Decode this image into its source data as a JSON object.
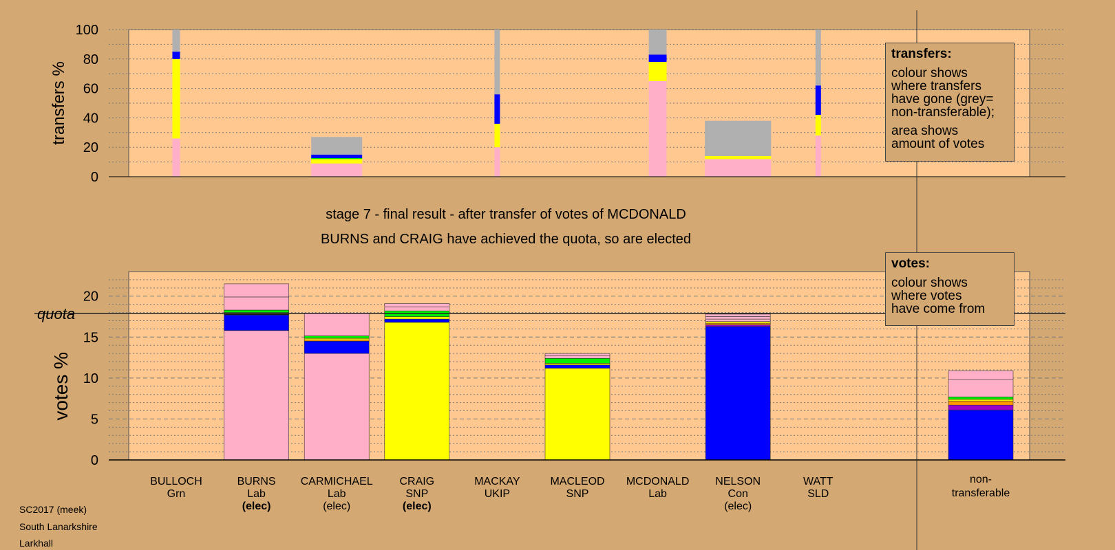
{
  "chart_data": [
    {
      "type": "bar",
      "stacked": true,
      "ylabel": "transfers %",
      "ylim": [
        0,
        100
      ],
      "yticks": [
        0,
        20,
        40,
        60,
        80,
        100
      ],
      "grid": "dotted",
      "legend": {
        "title": "transfers:",
        "paragraphs": [
          "colour shows\nwhere transfers\nhave gone (grey=\nnon-transferable);",
          "area shows\namount of votes"
        ],
        "placement": "top-right"
      },
      "colors": {
        "Lab": "#ffb0c8",
        "SNP": "#ffff00",
        "Con": "#0000ff",
        "Grn": "#00ee00",
        "UKIP": "#9900cc",
        "SLD": "#ff9900",
        "non-transferable": "#b0b0b0"
      },
      "bars": [
        {
          "target": "BULLOCH",
          "width_votes": 0.3,
          "segments": [
            {
              "party": "Lab",
              "value": 26
            },
            {
              "party": "SNP",
              "value": 54
            },
            {
              "party": "Con",
              "value": 5
            },
            {
              "party": "non-transferable",
              "value": 15
            }
          ]
        },
        {
          "target": "CARMICHAEL",
          "width_votes": 2.0,
          "segments": [
            {
              "party": "Lab",
              "value": 9
            },
            {
              "party": "SNP",
              "value": 3
            },
            {
              "party": "Grn",
              "value": 0.6
            },
            {
              "party": "Con",
              "value": 2.4
            },
            {
              "party": "non-transferable",
              "value": 12
            }
          ]
        },
        {
          "target": "MACKAY",
          "width_votes": 0.15,
          "segments": [
            {
              "party": "Lab",
              "value": 20
            },
            {
              "party": "SNP",
              "value": 16
            },
            {
              "party": "Con",
              "value": 20
            },
            {
              "party": "non-transferable",
              "value": 44
            }
          ]
        },
        {
          "target": "MCDONALD",
          "width_votes": 0.7,
          "segments": [
            {
              "party": "Lab",
              "value": 65
            },
            {
              "party": "SNP",
              "value": 13
            },
            {
              "party": "Con",
              "value": 5
            },
            {
              "party": "non-transferable",
              "value": 17
            }
          ]
        },
        {
          "target": "NELSON",
          "width_votes": 2.6,
          "segments": [
            {
              "party": "Lab",
              "value": 12
            },
            {
              "party": "SNP",
              "value": 2
            },
            {
              "party": "non-transferable",
              "value": 24
            }
          ]
        },
        {
          "target": "WATT",
          "width_votes": 0.15,
          "segments": [
            {
              "party": "Lab",
              "value": 28
            },
            {
              "party": "SNP",
              "value": 14
            },
            {
              "party": "Con",
              "value": 20
            },
            {
              "party": "non-transferable",
              "value": 38
            }
          ]
        }
      ]
    },
    {
      "type": "bar",
      "stacked": true,
      "title": "stage 7 - final result - after transfer of votes of MCDONALD",
      "subtitle": "BURNS and CRAIG have achieved the quota, so are elected",
      "ylabel": "votes %",
      "ylim": [
        0,
        23
      ],
      "yticks": [
        0,
        5,
        10,
        15,
        20
      ],
      "quota": 17.9,
      "quota_label": "quota",
      "grid": "dashed",
      "legend": {
        "title": "votes:",
        "paragraphs": [
          "colour shows\nwhere votes\nhave come from"
        ],
        "placement": "top-right"
      },
      "categories": [
        {
          "name": "BULLOCH",
          "party": "Grn",
          "status": "",
          "bold": false
        },
        {
          "name": "BURNS",
          "party": "Lab",
          "status": "(elec)",
          "bold": true
        },
        {
          "name": "CARMICHAEL",
          "party": "Lab",
          "status": "(elec)",
          "bold": false
        },
        {
          "name": "CRAIG",
          "party": "SNP",
          "status": "(elec)",
          "bold": true
        },
        {
          "name": "MACKAY",
          "party": "UKIP",
          "status": "",
          "bold": false
        },
        {
          "name": "MACLEOD",
          "party": "SNP",
          "status": "",
          "bold": false
        },
        {
          "name": "MCDONALD",
          "party": "Lab",
          "status": "",
          "bold": false
        },
        {
          "name": "NELSON",
          "party": "Con",
          "status": "(elec)",
          "bold": false
        },
        {
          "name": "WATT",
          "party": "SLD",
          "status": "",
          "bold": false
        }
      ],
      "nontransferable_label": [
        "non-",
        "transferable"
      ],
      "bars": [
        {
          "candidate": "BULLOCH",
          "segments": []
        },
        {
          "candidate": "BURNS",
          "segments": [
            {
              "color": "#ffb0c8",
              "value": 15.8
            },
            {
              "color": "#0000ff",
              "value": 1.9
            },
            {
              "color": "#000000",
              "value": 0.1
            },
            {
              "color": "#ffff00",
              "value": 0.15
            },
            {
              "color": "#ff9900",
              "value": 0.05
            },
            {
              "color": "#00ee00",
              "value": 0.3
            },
            {
              "color": "#ffb0c8",
              "value": 1.6
            },
            {
              "color": "#ffb0c8",
              "value": 1.6
            }
          ]
        },
        {
          "candidate": "CARMICHAEL",
          "segments": [
            {
              "color": "#ffb0c8",
              "value": 13.0
            },
            {
              "color": "#0000ff",
              "value": 1.5
            },
            {
              "color": "#ff9900",
              "value": 0.15
            },
            {
              "color": "#ffff00",
              "value": 0.2
            },
            {
              "color": "#00ee00",
              "value": 0.3
            },
            {
              "color": "#ffb0c8",
              "value": 2.75
            }
          ]
        },
        {
          "candidate": "CRAIG",
          "segments": [
            {
              "color": "#ffff00",
              "value": 16.8
            },
            {
              "color": "#0000ff",
              "value": 0.4
            },
            {
              "color": "#ffff00",
              "value": 0.3
            },
            {
              "color": "#00ee00",
              "value": 0.7
            },
            {
              "color": "#ffb0c8",
              "value": 0.5
            },
            {
              "color": "#ffb0c8",
              "value": 0.4
            }
          ]
        },
        {
          "candidate": "MACKAY",
          "segments": []
        },
        {
          "candidate": "MACLEOD",
          "segments": [
            {
              "color": "#ffff00",
              "value": 11.2
            },
            {
              "color": "#0000ff",
              "value": 0.4
            },
            {
              "color": "#ffff00",
              "value": 0.2
            },
            {
              "color": "#00ee00",
              "value": 0.6
            },
            {
              "color": "#ffb0c8",
              "value": 0.3
            },
            {
              "color": "#ffb0c8",
              "value": 0.3
            }
          ]
        },
        {
          "candidate": "MCDONALD",
          "segments": []
        },
        {
          "candidate": "NELSON",
          "segments": [
            {
              "color": "#0000ff",
              "value": 16.3
            },
            {
              "color": "#9900cc",
              "value": 0.2
            },
            {
              "color": "#ff9900",
              "value": 0.2
            },
            {
              "color": "#ffff00",
              "value": 0.2
            },
            {
              "color": "#ffb0c8",
              "value": 0.3
            },
            {
              "color": "#ffb0c8",
              "value": 0.3
            },
            {
              "color": "#ffb0c8",
              "value": 0.3
            }
          ]
        },
        {
          "candidate": "WATT",
          "segments": []
        },
        {
          "candidate": "non-transferable",
          "segments": [
            {
              "color": "#0000ff",
              "value": 6.1
            },
            {
              "color": "#9900cc",
              "value": 0.6
            },
            {
              "color": "#ff9900",
              "value": 0.5
            },
            {
              "color": "#ffff00",
              "value": 0.2
            },
            {
              "color": "#00ee00",
              "value": 0.3
            },
            {
              "color": "#ffb0c8",
              "value": 2.1
            },
            {
              "color": "#ffb0c8",
              "value": 1.1
            }
          ]
        }
      ]
    }
  ],
  "footer": {
    "lines": [
      "SC2017 (meek)",
      "South Lanarkshire",
      "Larkhall"
    ]
  }
}
